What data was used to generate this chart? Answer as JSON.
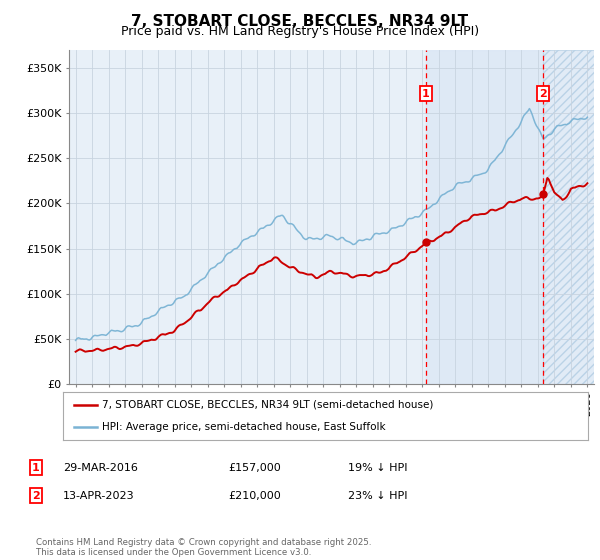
{
  "title": "7, STOBART CLOSE, BECCLES, NR34 9LT",
  "subtitle": "Price paid vs. HM Land Registry's House Price Index (HPI)",
  "title_fontsize": 11,
  "subtitle_fontsize": 9,
  "background_color": "#ffffff",
  "plot_bg_color": "#e8f0f8",
  "grid_color": "#c8d4e0",
  "hpi_color": "#7ab3d4",
  "price_color": "#cc0000",
  "shade_color": "#dce8f5",
  "marker1_year": 2016.25,
  "marker2_year": 2023.3,
  "legend_line1": "7, STOBART CLOSE, BECCLES, NR34 9LT (semi-detached house)",
  "legend_line2": "HPI: Average price, semi-detached house, East Suffolk",
  "footer": "Contains HM Land Registry data © Crown copyright and database right 2025.\nThis data is licensed under the Open Government Licence v3.0.",
  "ylim": [
    0,
    370000
  ],
  "yticks": [
    0,
    50000,
    100000,
    150000,
    200000,
    250000,
    300000,
    350000
  ],
  "ytick_labels": [
    "£0",
    "£50K",
    "£100K",
    "£150K",
    "£200K",
    "£250K",
    "£300K",
    "£350K"
  ],
  "xmin": 1994.6,
  "xmax": 2026.4
}
